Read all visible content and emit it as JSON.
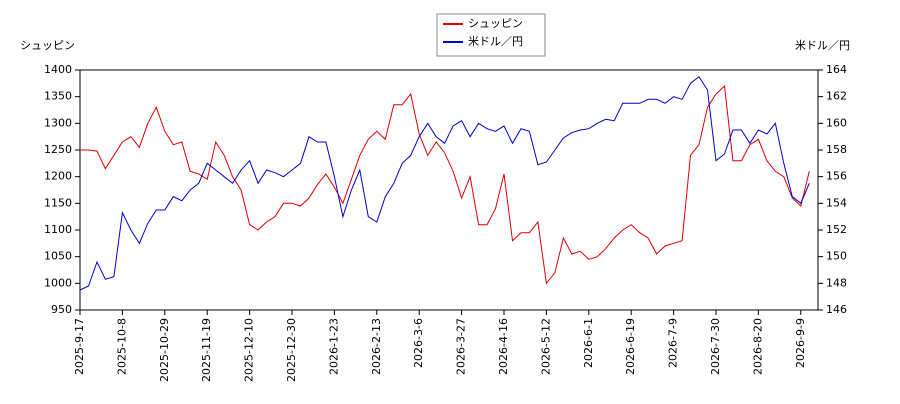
{
  "chart_data": {
    "type": "line",
    "y_label": "シュッピン",
    "y2_label": "米ドル／円",
    "categories": [
      "2025-9-17",
      null,
      null,
      null,
      null,
      "2025-10-8",
      null,
      null,
      null,
      null,
      "2025-10-29",
      null,
      null,
      null,
      null,
      "2025-11-19",
      null,
      null,
      null,
      null,
      "2025-12-10",
      null,
      null,
      null,
      null,
      "2025-12-30",
      null,
      null,
      null,
      null,
      "2026-1-23",
      null,
      null,
      null,
      null,
      "2026-2-13",
      null,
      null,
      null,
      null,
      "2026-3-6",
      null,
      null,
      null,
      null,
      "2026-3-27",
      null,
      null,
      null,
      null,
      "2026-4-16",
      null,
      null,
      null,
      null,
      "2026-5-12",
      null,
      null,
      null,
      null,
      "2026-6-1",
      null,
      null,
      null,
      null,
      "2026-6-19",
      null,
      null,
      null,
      null,
      "2026-7-9",
      null,
      null,
      null,
      null,
      "2026-7-30",
      null,
      null,
      null,
      null,
      "2026-8-20",
      null,
      null,
      null,
      null,
      "2026-9-9",
      null
    ],
    "series": [
      {
        "name": "シュッピン",
        "color": "#dd0000",
        "values": [
          1250,
          1250,
          1248,
          1215,
          1240,
          1265,
          1275,
          1255,
          1300,
          1330,
          1285,
          1260,
          1265,
          1210,
          1205,
          1195,
          1265,
          1240,
          1200,
          1175,
          1110,
          1100,
          1115,
          1125,
          1150,
          1150,
          1145,
          1160,
          1185,
          1205,
          1180,
          1150,
          1195,
          1240,
          1270,
          1285,
          1270,
          1335,
          1335,
          1355,
          1280,
          1240,
          1265,
          1245,
          1210,
          1160,
          1200,
          1110,
          1110,
          1140,
          1205,
          1080,
          1095,
          1095,
          1115,
          1000,
          1020,
          1085,
          1055,
          1060,
          1045,
          1050,
          1065,
          1085,
          1100,
          1110,
          1095,
          1085,
          1055,
          1070,
          1075,
          1080,
          1240,
          1260,
          1330,
          1355,
          1370,
          1230,
          1230,
          1260,
          1270,
          1230,
          1210,
          1200,
          1160,
          1145,
          1210
        ]
      },
      {
        "name": "米ドル／円",
        "color": "#0000cc",
        "axis": "y2",
        "values": [
          147.5,
          147.8,
          149.6,
          148.3,
          148.5,
          153.3,
          152,
          151,
          152.5,
          153.5,
          153.5,
          154.5,
          154.2,
          155,
          155.5,
          157,
          156.5,
          156,
          155.5,
          156.5,
          157.2,
          155.5,
          156.5,
          156.3,
          156,
          156.5,
          157,
          159,
          158.6,
          158.6,
          156,
          153,
          155,
          156.5,
          153,
          152.6,
          154.5,
          155.5,
          157,
          157.6,
          159,
          160,
          159,
          158.5,
          159.8,
          160.2,
          159,
          160,
          159.6,
          159.4,
          159.8,
          158.5,
          159.6,
          159.4,
          156.9,
          157.1,
          158,
          158.9,
          159.3,
          159.5,
          159.6,
          160,
          160.3,
          160.2,
          161.5,
          161.5,
          161.5,
          161.8,
          161.8,
          161.5,
          162,
          161.8,
          163,
          163.5,
          162.5,
          157.2,
          157.7,
          159.5,
          159.5,
          158.5,
          159.5,
          159.2,
          160,
          157,
          154.5,
          154,
          155.5
        ]
      }
    ],
    "ylim": [
      950,
      1400
    ],
    "yticks": [
      950,
      1000,
      1050,
      1100,
      1150,
      1200,
      1250,
      1300,
      1350,
      1400
    ],
    "y2lim": [
      146,
      164
    ],
    "y2ticks": [
      146,
      148,
      150,
      152,
      154,
      156,
      158,
      160,
      162,
      164
    ],
    "grid": false,
    "legend": "top"
  }
}
